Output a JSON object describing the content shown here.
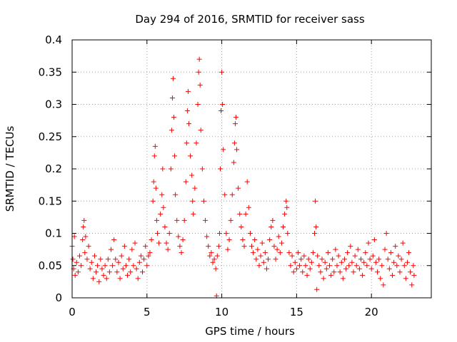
{
  "chart_data": {
    "type": "scatter",
    "title": "Day 294 of 2016, SRMTID for receiver sass",
    "xlabel": "GPS time / hours",
    "ylabel": "SRMTID / TECUs",
    "xlim": [
      0,
      24
    ],
    "ylim": [
      0,
      0.4
    ],
    "x_ticks": [
      0,
      5,
      10,
      15,
      20
    ],
    "x_tick_labels": [
      "0",
      "5",
      "10",
      "15",
      "20"
    ],
    "y_ticks": [
      0,
      0.05,
      0.1,
      0.15,
      0.2,
      0.25,
      0.3,
      0.35,
      0.4
    ],
    "y_tick_labels": [
      "0",
      "0.05",
      "0.1",
      "0.15",
      "0.2",
      "0.25",
      "0.3",
      "0.35",
      "0.4"
    ],
    "grid": true,
    "marker": "plus",
    "color": "#ff0000",
    "series": [
      {
        "name": "SRMTID",
        "points": [
          [
            0.0,
            0.08
          ],
          [
            0.05,
            0.06
          ],
          [
            0.1,
            0.045
          ],
          [
            0.15,
            0.095
          ],
          [
            0.2,
            0.035
          ],
          [
            0.3,
            0.055
          ],
          [
            0.4,
            0.04
          ],
          [
            0.5,
            0.065
          ],
          [
            0.6,
            0.05
          ],
          [
            0.7,
            0.09
          ],
          [
            0.75,
            0.11
          ],
          [
            0.8,
            0.12
          ],
          [
            0.85,
            0.07
          ],
          [
            0.9,
            0.095
          ],
          [
            1.0,
            0.06
          ],
          [
            1.1,
            0.08
          ],
          [
            1.2,
            0.045
          ],
          [
            1.3,
            0.055
          ],
          [
            1.4,
            0.03
          ],
          [
            1.5,
            0.065
          ],
          [
            1.6,
            0.04
          ],
          [
            1.7,
            0.05
          ],
          [
            1.8,
            0.025
          ],
          [
            1.9,
            0.06
          ],
          [
            2.0,
            0.045
          ],
          [
            2.1,
            0.035
          ],
          [
            2.2,
            0.05
          ],
          [
            2.3,
            0.03
          ],
          [
            2.4,
            0.06
          ],
          [
            2.5,
            0.04
          ],
          [
            2.6,
            0.075
          ],
          [
            2.7,
            0.05
          ],
          [
            2.8,
            0.09
          ],
          [
            2.9,
            0.06
          ],
          [
            3.0,
            0.04
          ],
          [
            3.1,
            0.055
          ],
          [
            3.2,
            0.03
          ],
          [
            3.3,
            0.065
          ],
          [
            3.4,
            0.045
          ],
          [
            3.5,
            0.08
          ],
          [
            3.6,
            0.05
          ],
          [
            3.7,
            0.035
          ],
          [
            3.8,
            0.06
          ],
          [
            3.9,
            0.04
          ],
          [
            4.0,
            0.075
          ],
          [
            4.1,
            0.05
          ],
          [
            4.2,
            0.085
          ],
          [
            4.3,
            0.045
          ],
          [
            4.4,
            0.03
          ],
          [
            4.5,
            0.055
          ],
          [
            4.6,
            0.065
          ],
          [
            4.7,
            0.04
          ],
          [
            4.8,
            0.06
          ],
          [
            4.9,
            0.08
          ],
          [
            5.0,
            0.05
          ],
          [
            5.1,
            0.065
          ],
          [
            5.2,
            0.07
          ],
          [
            5.3,
            0.09
          ],
          [
            5.4,
            0.15
          ],
          [
            5.45,
            0.18
          ],
          [
            5.5,
            0.22
          ],
          [
            5.55,
            0.235
          ],
          [
            5.6,
            0.17
          ],
          [
            5.65,
            0.12
          ],
          [
            5.7,
            0.1
          ],
          [
            5.8,
            0.085
          ],
          [
            5.9,
            0.13
          ],
          [
            6.0,
            0.16
          ],
          [
            6.05,
            0.2
          ],
          [
            6.1,
            0.14
          ],
          [
            6.2,
            0.11
          ],
          [
            6.3,
            0.085
          ],
          [
            6.4,
            0.075
          ],
          [
            6.5,
            0.1
          ],
          [
            6.6,
            0.2
          ],
          [
            6.65,
            0.26
          ],
          [
            6.7,
            0.31
          ],
          [
            6.75,
            0.34
          ],
          [
            6.8,
            0.28
          ],
          [
            6.85,
            0.22
          ],
          [
            6.9,
            0.16
          ],
          [
            7.0,
            0.12
          ],
          [
            7.1,
            0.095
          ],
          [
            7.2,
            0.08
          ],
          [
            7.3,
            0.07
          ],
          [
            7.4,
            0.09
          ],
          [
            7.5,
            0.12
          ],
          [
            7.6,
            0.18
          ],
          [
            7.65,
            0.24
          ],
          [
            7.7,
            0.29
          ],
          [
            7.75,
            0.32
          ],
          [
            7.8,
            0.27
          ],
          [
            7.9,
            0.22
          ],
          [
            8.0,
            0.19
          ],
          [
            8.05,
            0.15
          ],
          [
            8.1,
            0.13
          ],
          [
            8.2,
            0.17
          ],
          [
            8.3,
            0.24
          ],
          [
            8.4,
            0.3
          ],
          [
            8.45,
            0.35
          ],
          [
            8.5,
            0.37
          ],
          [
            8.55,
            0.33
          ],
          [
            8.6,
            0.26
          ],
          [
            8.7,
            0.2
          ],
          [
            8.8,
            0.15
          ],
          [
            8.9,
            0.12
          ],
          [
            9.0,
            0.095
          ],
          [
            9.1,
            0.08
          ],
          [
            9.2,
            0.065
          ],
          [
            9.3,
            0.07
          ],
          [
            9.4,
            0.055
          ],
          [
            9.5,
            0.06
          ],
          [
            9.6,
            0.045
          ],
          [
            9.65,
            0.003
          ],
          [
            9.7,
            0.065
          ],
          [
            9.8,
            0.08
          ],
          [
            9.85,
            0.1
          ],
          [
            9.9,
            0.2
          ],
          [
            9.95,
            0.29
          ],
          [
            10.0,
            0.35
          ],
          [
            10.05,
            0.3
          ],
          [
            10.1,
            0.23
          ],
          [
            10.2,
            0.16
          ],
          [
            10.3,
            0.1
          ],
          [
            10.4,
            0.075
          ],
          [
            10.5,
            0.09
          ],
          [
            10.6,
            0.12
          ],
          [
            10.7,
            0.16
          ],
          [
            10.8,
            0.21
          ],
          [
            10.85,
            0.24
          ],
          [
            10.9,
            0.27
          ],
          [
            10.95,
            0.28
          ],
          [
            11.0,
            0.23
          ],
          [
            11.1,
            0.17
          ],
          [
            11.2,
            0.13
          ],
          [
            11.3,
            0.11
          ],
          [
            11.4,
            0.09
          ],
          [
            11.5,
            0.08
          ],
          [
            11.6,
            0.13
          ],
          [
            11.7,
            0.18
          ],
          [
            11.8,
            0.14
          ],
          [
            11.9,
            0.1
          ],
          [
            12.0,
            0.08
          ],
          [
            12.1,
            0.07
          ],
          [
            12.2,
            0.09
          ],
          [
            12.3,
            0.06
          ],
          [
            12.4,
            0.075
          ],
          [
            12.5,
            0.05
          ],
          [
            12.6,
            0.065
          ],
          [
            12.7,
            0.085
          ],
          [
            12.8,
            0.055
          ],
          [
            12.9,
            0.07
          ],
          [
            13.0,
            0.045
          ],
          [
            13.1,
            0.06
          ],
          [
            13.2,
            0.09
          ],
          [
            13.3,
            0.11
          ],
          [
            13.4,
            0.12
          ],
          [
            13.5,
            0.08
          ],
          [
            13.6,
            0.06
          ],
          [
            13.7,
            0.075
          ],
          [
            13.8,
            0.095
          ],
          [
            13.9,
            0.07
          ],
          [
            14.0,
            0.085
          ],
          [
            14.1,
            0.11
          ],
          [
            14.2,
            0.13
          ],
          [
            14.3,
            0.15
          ],
          [
            14.35,
            0.14
          ],
          [
            14.4,
            0.1
          ],
          [
            14.5,
            0.07
          ],
          [
            14.6,
            0.05
          ],
          [
            14.7,
            0.065
          ],
          [
            14.8,
            0.04
          ],
          [
            14.9,
            0.055
          ],
          [
            15.0,
            0.045
          ],
          [
            15.1,
            0.07
          ],
          [
            15.2,
            0.05
          ],
          [
            15.3,
            0.06
          ],
          [
            15.4,
            0.04
          ],
          [
            15.5,
            0.065
          ],
          [
            15.6,
            0.05
          ],
          [
            15.7,
            0.035
          ],
          [
            15.8,
            0.06
          ],
          [
            15.9,
            0.045
          ],
          [
            16.0,
            0.055
          ],
          [
            16.1,
            0.07
          ],
          [
            16.2,
            0.1
          ],
          [
            16.25,
            0.15
          ],
          [
            16.3,
            0.11
          ],
          [
            16.35,
            0.013
          ],
          [
            16.4,
            0.065
          ],
          [
            16.5,
            0.05
          ],
          [
            16.6,
            0.04
          ],
          [
            16.7,
            0.06
          ],
          [
            16.8,
            0.03
          ],
          [
            16.9,
            0.055
          ],
          [
            17.0,
            0.045
          ],
          [
            17.1,
            0.07
          ],
          [
            17.2,
            0.05
          ],
          [
            17.3,
            0.035
          ],
          [
            17.4,
            0.06
          ],
          [
            17.5,
            0.04
          ],
          [
            17.6,
            0.075
          ],
          [
            17.7,
            0.05
          ],
          [
            17.8,
            0.065
          ],
          [
            17.9,
            0.04
          ],
          [
            18.0,
            0.055
          ],
          [
            18.1,
            0.03
          ],
          [
            18.2,
            0.06
          ],
          [
            18.3,
            0.045
          ],
          [
            18.4,
            0.07
          ],
          [
            18.5,
            0.05
          ],
          [
            18.6,
            0.08
          ],
          [
            18.7,
            0.055
          ],
          [
            18.8,
            0.04
          ],
          [
            18.9,
            0.065
          ],
          [
            19.0,
            0.05
          ],
          [
            19.1,
            0.075
          ],
          [
            19.2,
            0.045
          ],
          [
            19.3,
            0.06
          ],
          [
            19.4,
            0.035
          ],
          [
            19.5,
            0.055
          ],
          [
            19.6,
            0.07
          ],
          [
            19.7,
            0.05
          ],
          [
            19.8,
            0.085
          ],
          [
            19.9,
            0.06
          ],
          [
            20.0,
            0.045
          ],
          [
            20.1,
            0.065
          ],
          [
            20.2,
            0.09
          ],
          [
            20.3,
            0.055
          ],
          [
            20.4,
            0.04
          ],
          [
            20.5,
            0.06
          ],
          [
            20.6,
            0.03
          ],
          [
            20.7,
            0.05
          ],
          [
            20.8,
            0.02
          ],
          [
            20.9,
            0.075
          ],
          [
            21.0,
            0.1
          ],
          [
            21.1,
            0.06
          ],
          [
            21.2,
            0.045
          ],
          [
            21.3,
            0.07
          ],
          [
            21.4,
            0.035
          ],
          [
            21.5,
            0.055
          ],
          [
            21.6,
            0.08
          ],
          [
            21.7,
            0.05
          ],
          [
            21.8,
            0.065
          ],
          [
            21.9,
            0.04
          ],
          [
            22.0,
            0.06
          ],
          [
            22.1,
            0.085
          ],
          [
            22.2,
            0.05
          ],
          [
            22.3,
            0.03
          ],
          [
            22.4,
            0.055
          ],
          [
            22.5,
            0.07
          ],
          [
            22.6,
            0.04
          ],
          [
            22.7,
            0.02
          ],
          [
            22.8,
            0.05
          ],
          [
            22.85,
            0.035
          ]
        ]
      }
    ]
  }
}
